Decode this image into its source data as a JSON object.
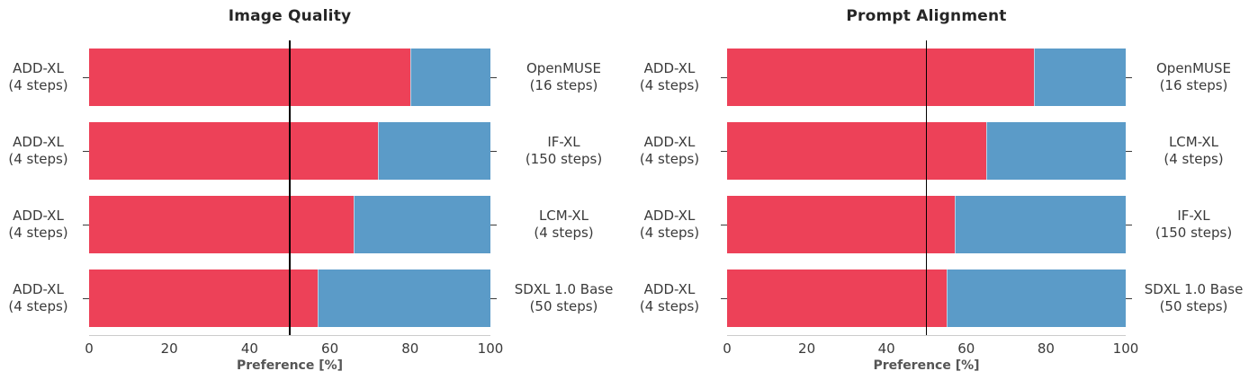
{
  "colors": {
    "left_series": "#ED4158",
    "right_series": "#5B9BC8",
    "reference_line": "#000000",
    "axis_line": "#cccccc",
    "label_text": "#3a3a3a",
    "axis_label_text": "#555555"
  },
  "chart_data": [
    {
      "type": "bar",
      "orientation": "horizontal-stacked",
      "title": "Image Quality",
      "xlabel": "Preference [%]",
      "xlim": [
        0,
        100
      ],
      "x_ticks": [
        0,
        20,
        40,
        60,
        80,
        100
      ],
      "reference_line_x": 50,
      "grid": false,
      "legend": "none",
      "rows": [
        {
          "left_label": [
            "ADD-XL",
            "(4 steps)"
          ],
          "right_label": [
            "OpenMUSE",
            "(16 steps)"
          ],
          "left_value": 80,
          "right_value": 20
        },
        {
          "left_label": [
            "ADD-XL",
            "(4 steps)"
          ],
          "right_label": [
            "IF-XL",
            "(150 steps)"
          ],
          "left_value": 72,
          "right_value": 28
        },
        {
          "left_label": [
            "ADD-XL",
            "(4 steps)"
          ],
          "right_label": [
            "LCM-XL",
            "(4 steps)"
          ],
          "left_value": 66,
          "right_value": 34
        },
        {
          "left_label": [
            "ADD-XL",
            "(4 steps)"
          ],
          "right_label": [
            "SDXL 1.0 Base",
            "(50 steps)"
          ],
          "left_value": 57,
          "right_value": 43
        }
      ]
    },
    {
      "type": "bar",
      "orientation": "horizontal-stacked",
      "title": "Prompt Alignment",
      "xlabel": "Preference [%]",
      "xlim": [
        0,
        100
      ],
      "x_ticks": [
        0,
        20,
        40,
        60,
        80,
        100
      ],
      "reference_line_x": 50,
      "grid": false,
      "legend": "none",
      "rows": [
        {
          "left_label": [
            "ADD-XL",
            "(4 steps)"
          ],
          "right_label": [
            "OpenMUSE",
            "(16 steps)"
          ],
          "left_value": 77,
          "right_value": 23
        },
        {
          "left_label": [
            "ADD-XL",
            "(4 steps)"
          ],
          "right_label": [
            "LCM-XL",
            "(4 steps)"
          ],
          "left_value": 65,
          "right_value": 35
        },
        {
          "left_label": [
            "ADD-XL",
            "(4 steps)"
          ],
          "right_label": [
            "IF-XL",
            "(150 steps)"
          ],
          "left_value": 57,
          "right_value": 43
        },
        {
          "left_label": [
            "ADD-XL",
            "(4 steps)"
          ],
          "right_label": [
            "SDXL 1.0 Base",
            "(50 steps)"
          ],
          "left_value": 55,
          "right_value": 45
        }
      ]
    }
  ]
}
